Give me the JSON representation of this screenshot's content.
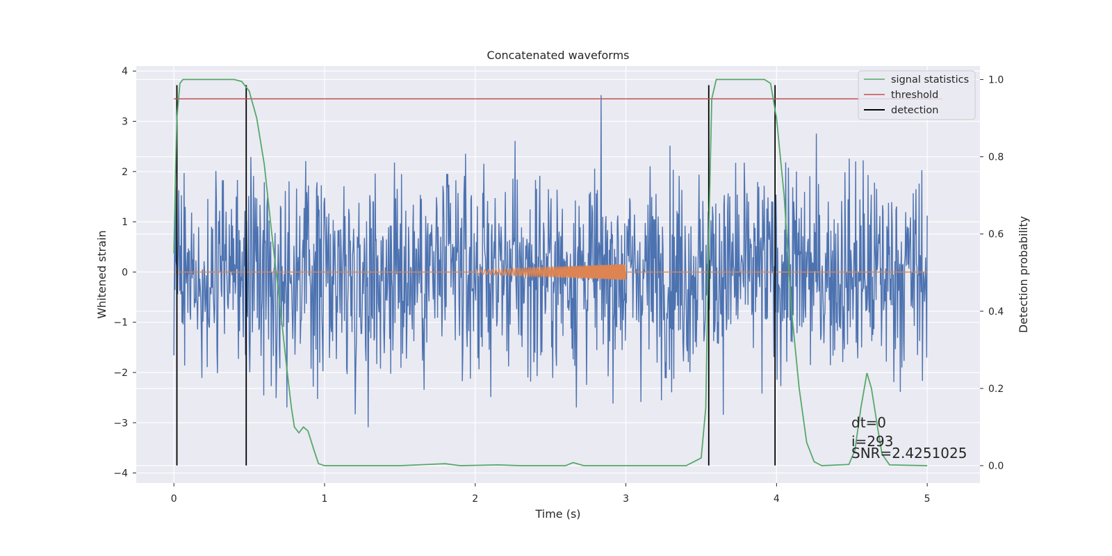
{
  "chart_data": {
    "type": "line",
    "title": "Concatenated waveforms",
    "xlabel": "Time (s)",
    "ylabel": "Whitened strain",
    "y2label": "Detection probability",
    "xlim": [
      -0.25,
      5.35
    ],
    "ylim": [
      -4.2,
      4.1
    ],
    "y2lim": [
      -0.045,
      1.035
    ],
    "xticks": [
      0,
      1,
      2,
      3,
      4,
      5
    ],
    "yticks": [
      -4,
      -3,
      -2,
      -1,
      0,
      1,
      2,
      3,
      4
    ],
    "y2ticks": [
      0.0,
      0.2,
      0.4,
      0.6,
      0.8,
      1.0
    ],
    "xtick_labels": [
      "0",
      "1",
      "2",
      "3",
      "4",
      "5"
    ],
    "ytick_labels": [
      "−4",
      "−3",
      "−2",
      "−1",
      "0",
      "1",
      "2",
      "3",
      "4"
    ],
    "y2tick_labels": [
      "0.0",
      "0.2",
      "0.4",
      "0.6",
      "0.8",
      "1.0"
    ],
    "grid": true,
    "legend_position": "top-right",
    "colors": {
      "noise": "#4c72b0",
      "injection": "#dd8452",
      "statistics": "#55a868",
      "threshold": "#c44e52",
      "detection": "#000000",
      "plot_bg": "#eaeaf2",
      "grid": "#ffffff"
    },
    "noise": {
      "x_range": [
        0,
        5
      ],
      "samples": 1400,
      "typical_amplitude": 1.0,
      "max_positive": 3.75,
      "max_negative": -3.85
    },
    "injection": {
      "x_range": [
        0,
        5
      ],
      "chirp_x_range": [
        2,
        3
      ],
      "amplitude_start": 0.04,
      "amplitude_end": 0.16
    },
    "series": [
      {
        "name": "signal statistics",
        "axis": "right",
        "points": [
          [
            0.0,
            0.55
          ],
          [
            0.01,
            0.75
          ],
          [
            0.02,
            0.9
          ],
          [
            0.04,
            0.99
          ],
          [
            0.06,
            1.0
          ],
          [
            0.4,
            1.0
          ],
          [
            0.45,
            0.995
          ],
          [
            0.5,
            0.97
          ],
          [
            0.55,
            0.9
          ],
          [
            0.6,
            0.78
          ],
          [
            0.65,
            0.6
          ],
          [
            0.7,
            0.43
          ],
          [
            0.75,
            0.25
          ],
          [
            0.78,
            0.15
          ],
          [
            0.8,
            0.1
          ],
          [
            0.83,
            0.085
          ],
          [
            0.86,
            0.1
          ],
          [
            0.89,
            0.09
          ],
          [
            0.93,
            0.04
          ],
          [
            0.96,
            0.005
          ],
          [
            1.0,
            0.0
          ],
          [
            1.5,
            0.0
          ],
          [
            1.8,
            0.005
          ],
          [
            1.9,
            0.0
          ],
          [
            2.15,
            0.002
          ],
          [
            2.3,
            0.0
          ],
          [
            2.6,
            0.0
          ],
          [
            2.65,
            0.008
          ],
          [
            2.72,
            0.0
          ],
          [
            3.4,
            0.0
          ],
          [
            3.5,
            0.02
          ],
          [
            3.53,
            0.15
          ],
          [
            3.55,
            0.6
          ],
          [
            3.57,
            0.95
          ],
          [
            3.6,
            1.0
          ],
          [
            3.92,
            1.0
          ],
          [
            3.96,
            0.99
          ],
          [
            4.0,
            0.9
          ],
          [
            4.05,
            0.7
          ],
          [
            4.1,
            0.4
          ],
          [
            4.15,
            0.2
          ],
          [
            4.2,
            0.06
          ],
          [
            4.25,
            0.01
          ],
          [
            4.3,
            0.0
          ],
          [
            4.48,
            0.003
          ],
          [
            4.52,
            0.04
          ],
          [
            4.56,
            0.15
          ],
          [
            4.6,
            0.24
          ],
          [
            4.63,
            0.2
          ],
          [
            4.67,
            0.1
          ],
          [
            4.7,
            0.03
          ],
          [
            4.75,
            0.002
          ],
          [
            5.0,
            0.0
          ]
        ]
      },
      {
        "name": "threshold",
        "axis": "right",
        "points": [
          [
            0,
            0.95
          ],
          [
            5.1,
            0.95
          ]
        ]
      },
      {
        "name": "detection",
        "axis": "left",
        "vlines": [
          0.02,
          0.48,
          3.55,
          3.99
        ],
        "y_range": [
          -3.85,
          3.72
        ]
      }
    ],
    "annotations": [
      "dt=0",
      "i=293",
      "SNR=2.4251025"
    ]
  }
}
